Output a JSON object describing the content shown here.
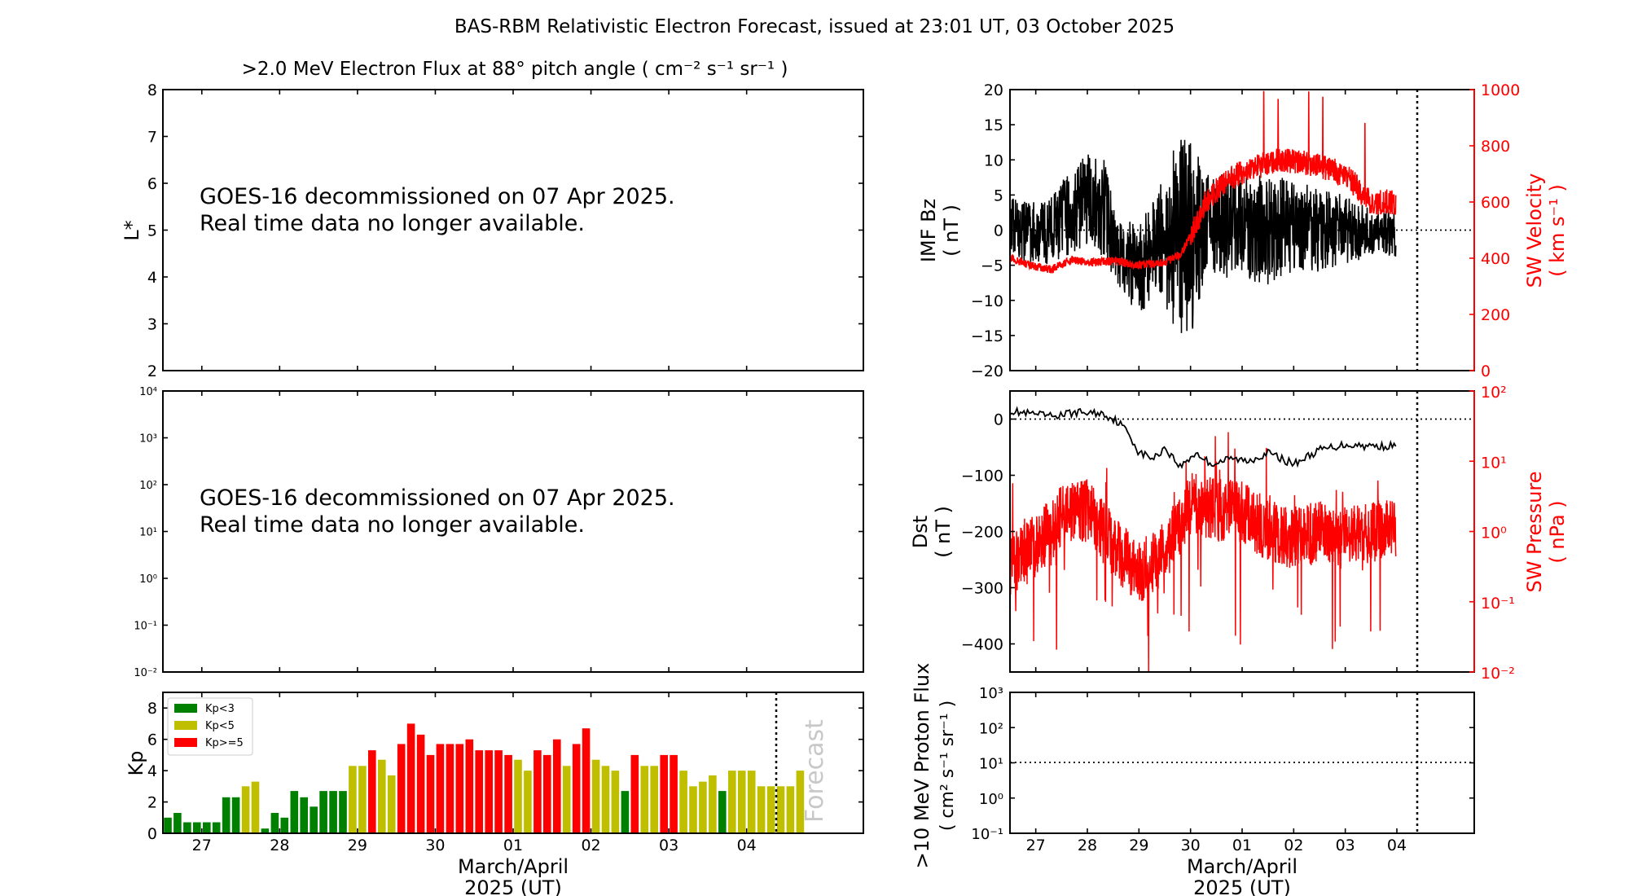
{
  "figure": {
    "title": "BAS-RBM Relativistic Electron Forecast, issued at 23:01 UT, 03 October 2025",
    "xlabel_line1": "March/April",
    "xlabel_line2": "2025 (UT)",
    "day_ticks": [
      "27",
      "28",
      "29",
      "30",
      "01",
      "02",
      "03",
      "04"
    ]
  },
  "panels": {
    "flux": {
      "title": ">2.0 MeV Electron Flux at 88° pitch angle ( cm⁻² s⁻¹ sr⁻¹ )",
      "ylabel": "L*",
      "yticks": [
        "2",
        "3",
        "4",
        "5",
        "6",
        "7",
        "8"
      ],
      "message_line1": "GOES-16 decommissioned on 07 Apr 2025.",
      "message_line2": "Real time data no longer available."
    },
    "flux_log": {
      "yticks": [
        "10⁻²",
        "10⁻¹",
        "10⁰",
        "10¹",
        "10²",
        "10³",
        "10⁴"
      ],
      "message_line1": "GOES-16 decommissioned on 07 Apr 2025.",
      "message_line2": "Real time data no longer available."
    },
    "kp": {
      "ylabel": "Kp",
      "yticks": [
        "0",
        "2",
        "4",
        "6",
        "8"
      ],
      "legend": [
        "Kp<3",
        "Kp<5",
        "Kp>=5"
      ],
      "forecast_label": "Forecast"
    },
    "imf": {
      "ylabel_line1": "IMF Bz",
      "ylabel_line2": "( nT )",
      "ylabel_right_line1": "SW Velocity",
      "ylabel_right_line2": "( km s⁻¹ )",
      "yticks": [
        "−20",
        "−15",
        "−10",
        "−5",
        "0",
        "5",
        "10",
        "15",
        "20"
      ],
      "yticks_right": [
        "0",
        "200",
        "400",
        "600",
        "800",
        "1000"
      ]
    },
    "dst": {
      "ylabel_line1": "Dst",
      "ylabel_line2": "( nT )",
      "ylabel_right_line1": "SW Pressure",
      "ylabel_right_line2": "( nPa )",
      "yticks": [
        "0",
        "−100",
        "−200",
        "−300",
        "−400"
      ],
      "yticks_right": [
        "10²",
        "10¹",
        "10⁰",
        "10⁻¹",
        "10⁻²"
      ]
    },
    "proton": {
      "ylabel_line1": ">10 MeV Proton Flux",
      "ylabel_line2": "( cm² s⁻¹ sr⁻¹ )",
      "yticks": [
        "10³",
        "10²",
        "10¹",
        "10⁰",
        "10⁻¹"
      ]
    }
  },
  "colors": {
    "kp_low": "#008000",
    "kp_mid": "#bfbf00",
    "kp_high": "#ff0000",
    "sw_red": "#ff0000"
  },
  "chart_data": [
    {
      "type": "bar",
      "name": "Kp index",
      "x_axis": {
        "start": "2025-03-26T12:00",
        "end": "2025-04-04T12:00",
        "forecast_start": "2025-04-03T12:00"
      },
      "interval_hours": 3,
      "ylim": [
        0,
        9
      ],
      "values": [
        1.0,
        1.3,
        0.7,
        0.7,
        0.7,
        0.7,
        2.3,
        2.3,
        3.0,
        3.3,
        0.3,
        1.3,
        1.0,
        2.7,
        2.3,
        1.7,
        2.7,
        2.7,
        2.7,
        4.3,
        4.3,
        5.3,
        4.7,
        3.7,
        5.7,
        7.0,
        6.3,
        5.0,
        5.7,
        5.7,
        5.7,
        6.0,
        5.3,
        5.3,
        5.3,
        5.0,
        4.7,
        4.0,
        5.3,
        5.0,
        6.0,
        4.3,
        5.7,
        6.7,
        4.7,
        4.3,
        4.0,
        2.7,
        5.0,
        4.3,
        4.3,
        5.0,
        5.0,
        4.0,
        3.0,
        3.3,
        3.7,
        2.7
      ],
      "forecast_values": [
        4.0,
        4.0,
        4.0,
        3.0,
        3.0,
        3.0,
        3.0,
        4.0
      ]
    },
    {
      "type": "line",
      "name": "IMF Bz and solar wind velocity",
      "x_axis": {
        "start": "2025-03-26T12:00",
        "end": "2025-04-04T12:00"
      },
      "ylim": [
        -20,
        20
      ],
      "ylim_right": [
        0,
        1000
      ],
      "bz_envelope_knots": [
        {
          "day": 0.0,
          "low": -4,
          "high": 5
        },
        {
          "day": 0.7,
          "low": -5,
          "high": 4
        },
        {
          "day": 1.3,
          "low": -3,
          "high": 10
        },
        {
          "day": 1.5,
          "low": -2,
          "high": 11
        },
        {
          "day": 1.85,
          "low": -4,
          "high": 10
        },
        {
          "day": 2.05,
          "low": -8,
          "high": 2
        },
        {
          "day": 2.5,
          "low": -12,
          "high": 1
        },
        {
          "day": 2.9,
          "low": -9,
          "high": 6
        },
        {
          "day": 3.2,
          "low": -14,
          "high": 14
        },
        {
          "day": 3.5,
          "low": -16,
          "high": 13
        },
        {
          "day": 3.8,
          "low": -6,
          "high": 8
        },
        {
          "day": 4.3,
          "low": -7,
          "high": 8
        },
        {
          "day": 5.0,
          "low": -8,
          "high": 8
        },
        {
          "day": 5.5,
          "low": -6,
          "high": 7
        },
        {
          "day": 6.0,
          "low": -6,
          "high": 6
        },
        {
          "day": 6.5,
          "low": -5,
          "high": 5
        },
        {
          "day": 6.98,
          "low": -4,
          "high": 3
        }
      ],
      "velocity_knots": [
        {
          "day": 0.0,
          "v": 400
        },
        {
          "day": 0.5,
          "v": 370
        },
        {
          "day": 0.8,
          "v": 360
        },
        {
          "day": 1.2,
          "v": 395
        },
        {
          "day": 1.6,
          "v": 385
        },
        {
          "day": 2.0,
          "v": 390
        },
        {
          "day": 2.5,
          "v": 375
        },
        {
          "day": 3.0,
          "v": 385
        },
        {
          "day": 3.3,
          "v": 410
        },
        {
          "day": 3.6,
          "v": 520
        },
        {
          "day": 3.8,
          "v": 600
        },
        {
          "day": 4.2,
          "v": 680
        },
        {
          "day": 4.7,
          "v": 720
        },
        {
          "day": 5.2,
          "v": 750
        },
        {
          "day": 5.7,
          "v": 740
        },
        {
          "day": 6.2,
          "v": 720
        },
        {
          "day": 6.6,
          "v": 680
        },
        {
          "day": 6.98,
          "v": 600
        }
      ]
    },
    {
      "type": "line",
      "name": "Dst and solar wind pressure",
      "x_axis": {
        "start": "2025-03-26T12:00",
        "end": "2025-04-04T12:00"
      },
      "ylim": [
        -450,
        50
      ],
      "ylim_right_log10": [
        -2,
        2
      ],
      "dst_knots": [
        {
          "day": 0.0,
          "dst": 15
        },
        {
          "day": 0.3,
          "dst": 10
        },
        {
          "day": 0.8,
          "dst": 5
        },
        {
          "day": 1.3,
          "dst": 12
        },
        {
          "day": 1.8,
          "dst": 10
        },
        {
          "day": 2.1,
          "dst": -5
        },
        {
          "day": 2.3,
          "dst": -25
        },
        {
          "day": 2.5,
          "dst": -60
        },
        {
          "day": 2.8,
          "dst": -70
        },
        {
          "day": 3.0,
          "dst": -50
        },
        {
          "day": 3.3,
          "dst": -85
        },
        {
          "day": 3.6,
          "dst": -60
        },
        {
          "day": 3.9,
          "dst": -80
        },
        {
          "day": 4.3,
          "dst": -70
        },
        {
          "day": 4.6,
          "dst": -75
        },
        {
          "day": 5.0,
          "dst": -60
        },
        {
          "day": 5.5,
          "dst": -80
        },
        {
          "day": 6.0,
          "dst": -55
        },
        {
          "day": 6.5,
          "dst": -45
        },
        {
          "day": 6.98,
          "dst": -48
        }
      ],
      "pressure_log10_knots": [
        {
          "day": 0.0,
          "p": -0.5
        },
        {
          "day": 0.5,
          "p": -0.2
        },
        {
          "day": 1.0,
          "p": 0.2
        },
        {
          "day": 1.5,
          "p": 0.3
        },
        {
          "day": 2.0,
          "p": -0.2
        },
        {
          "day": 2.5,
          "p": -0.6
        },
        {
          "day": 3.0,
          "p": -0.3
        },
        {
          "day": 3.5,
          "p": 0.4
        },
        {
          "day": 4.0,
          "p": 0.3
        },
        {
          "day": 4.5,
          "p": 0.3
        },
        {
          "day": 5.0,
          "p": 0.0
        },
        {
          "day": 5.5,
          "p": -0.1
        },
        {
          "day": 6.0,
          "p": 0.0
        },
        {
          "day": 6.5,
          "p": -0.1
        },
        {
          "day": 6.98,
          "p": 0.0
        }
      ]
    },
    {
      "type": "line",
      "name": "Proton flux",
      "x_axis": {
        "start": "2025-03-26T12:00",
        "end": "2025-04-04T12:00"
      },
      "ylim_log10": [
        -1,
        3
      ],
      "threshold": 10
    }
  ]
}
